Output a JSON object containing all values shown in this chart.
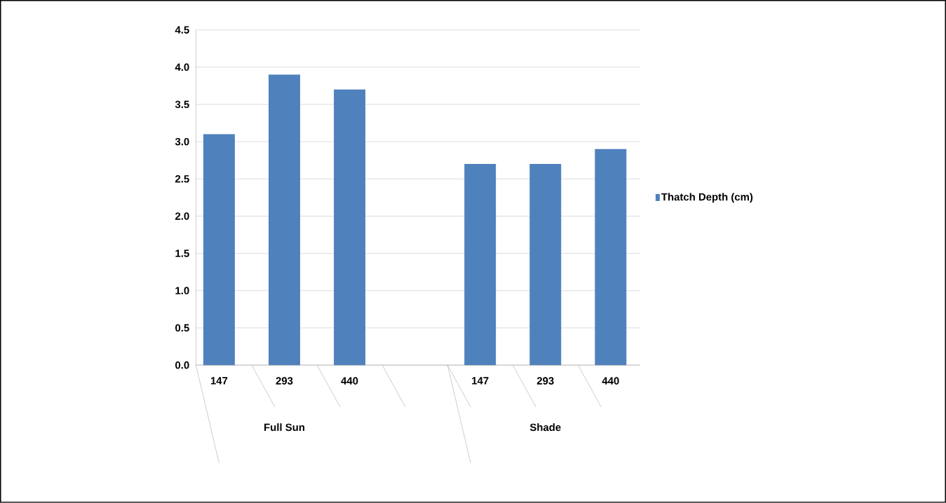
{
  "chart_data": {
    "type": "bar",
    "categories": [
      "147",
      "293",
      "440",
      null,
      "147",
      "293",
      "440"
    ],
    "series": [
      {
        "name": "Thatch Depth (cm)",
        "color": "#4f81bd",
        "values": [
          3.1,
          3.9,
          3.7,
          null,
          2.7,
          2.7,
          2.9
        ]
      }
    ],
    "annotations": [
      "Full Sun",
      "Shade"
    ],
    "ylim": [
      0,
      4.5
    ],
    "yticks": [
      {
        "value": 0,
        "label": "0.0"
      },
      {
        "value": 0.5,
        "label": "0.5"
      },
      {
        "value": 1,
        "label": "1.0"
      },
      {
        "value": 1.5,
        "label": "1.5"
      },
      {
        "value": 2,
        "label": "2.0"
      },
      {
        "value": 2.5,
        "label": "2.5"
      },
      {
        "value": 3,
        "label": "3.0"
      },
      {
        "value": 3.5,
        "label": "3.5"
      },
      {
        "value": 4,
        "label": "4.0"
      },
      {
        "value": 4.5,
        "label": "4.5"
      }
    ],
    "grid": "y",
    "legend": "right"
  }
}
